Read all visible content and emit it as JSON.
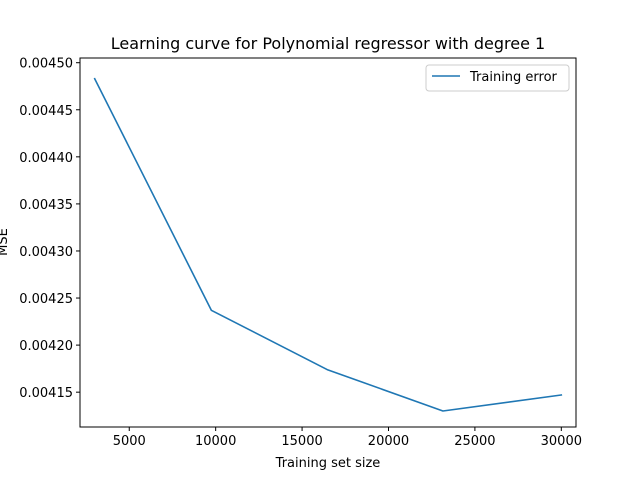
{
  "chart_data": {
    "type": "line",
    "title": "Learning curve for Polynomial regressor with degree 1",
    "xlabel": "Training set size",
    "ylabel": "MSE",
    "xlim": [
      2150,
      30850
    ],
    "ylim": [
      0.004113,
      0.004505
    ],
    "x_ticks": [
      5000,
      10000,
      15000,
      20000,
      25000,
      30000
    ],
    "x_tick_labels": [
      "5000",
      "10000",
      "15000",
      "20000",
      "25000",
      "30000"
    ],
    "y_ticks": [
      0.00415,
      0.0042,
      0.00425,
      0.0043,
      0.00435,
      0.0044,
      0.00445,
      0.0045
    ],
    "y_tick_labels": [
      "0.00415",
      "0.00420",
      "0.00425",
      "0.00430",
      "0.00435",
      "0.00440",
      "0.00445",
      "0.00450"
    ],
    "grid": false,
    "legend_position": "top-right",
    "series": [
      {
        "name": "Training error",
        "color": "#1f77b4",
        "x": [
          3000,
          9750,
          16450,
          23150,
          30000
        ],
        "y": [
          0.004483,
          0.004237,
          0.004174,
          0.00413,
          0.004147
        ]
      }
    ]
  }
}
